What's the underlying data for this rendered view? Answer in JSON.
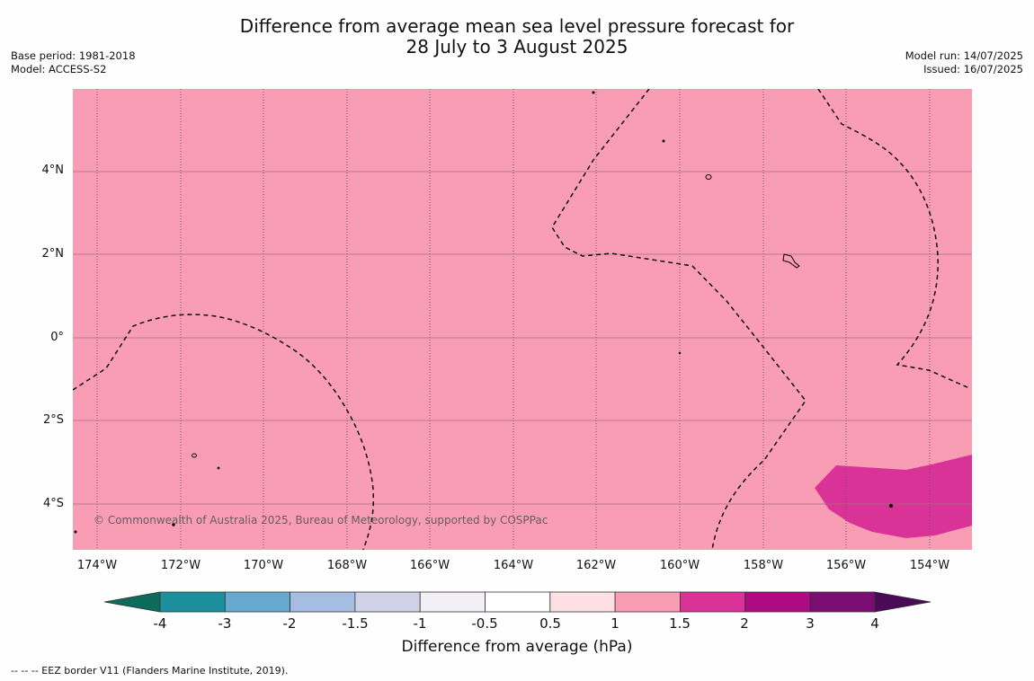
{
  "title": {
    "line1": "Difference from average mean sea level pressure forecast for",
    "line2": "28 July to 3 August 2025"
  },
  "meta_left": {
    "base_period": "Base period: 1981-2018",
    "model": "Model: ACCESS-S2"
  },
  "meta_right": {
    "model_run": "Model run: 14/07/2025",
    "issued": "Issued: 16/07/2025"
  },
  "map": {
    "lat_labels": [
      "4°N",
      "2°N",
      "0°",
      "2°S",
      "4°S"
    ],
    "lon_labels": [
      "174°W",
      "172°W",
      "170°W",
      "168°W",
      "166°W",
      "164°W",
      "162°W",
      "160°W",
      "158°W",
      "156°W",
      "154°W"
    ],
    "background_color": "#f99db5",
    "anomaly_color": "#da3398",
    "background_anomaly_range_hPa": [
      1,
      1.5
    ],
    "patch_anomaly_range_hPa": [
      1.5,
      2
    ],
    "copyright": "© Commonwealth of Australia 2025, Bureau of Meteorology, supported by COSPPac"
  },
  "colorbar": {
    "ticks": [
      "-4",
      "-3",
      "-2",
      "-1.5",
      "-1",
      "-0.5",
      "0.5",
      "1",
      "1.5",
      "2",
      "3",
      "4"
    ],
    "colors": [
      "#0d6b5c",
      "#1b8f9c",
      "#66a9d0",
      "#a5bde0",
      "#d1d1e8",
      "#f2f0f4",
      "#ffffff",
      "#fde0e4",
      "#f99db5",
      "#da3398",
      "#ad0a83",
      "#7b0c72",
      "#4a0a55"
    ],
    "label": "Difference from average (hPa)"
  },
  "footnote": "--  --  -- EEZ border V11 (Flanders Marine Institute, 2019)."
}
